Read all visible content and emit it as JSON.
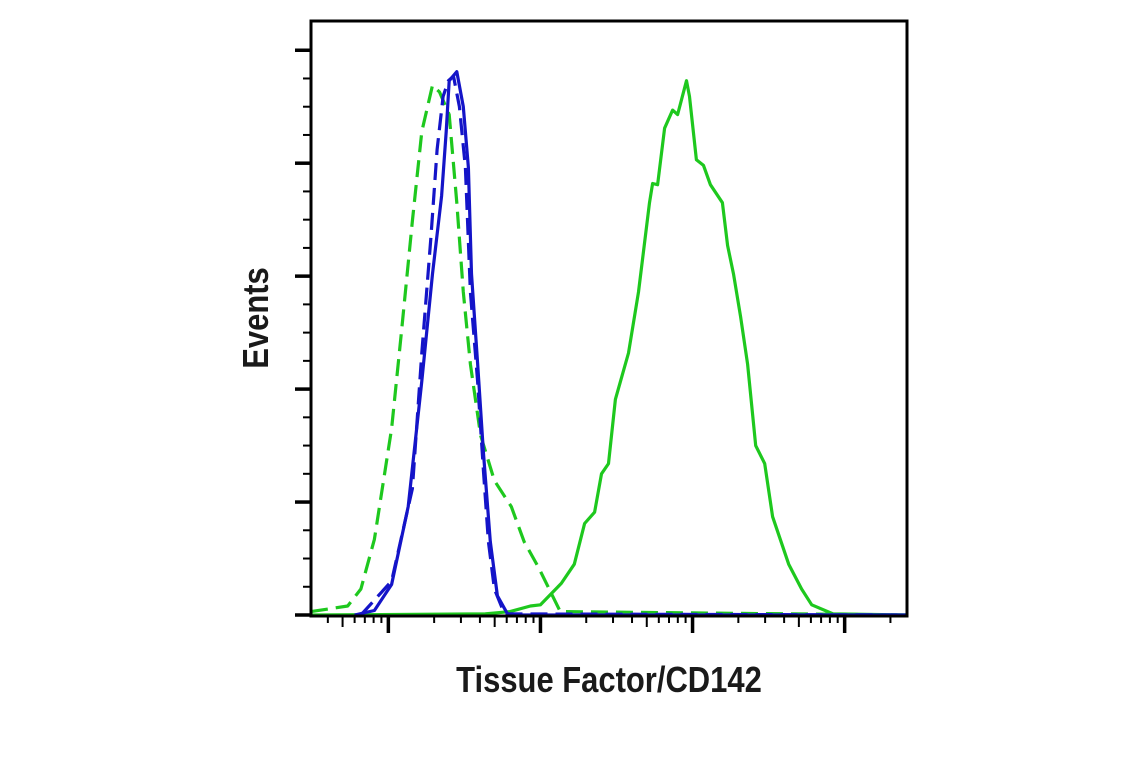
{
  "chart_data": {
    "type": "line",
    "title": "",
    "xlabel": "Tissue Factor/CD142",
    "ylabel": "Events",
    "xscale": "log",
    "xlim": [
      31,
      257000
    ],
    "ylim": [
      0,
      5.25
    ],
    "x_major_ticks": [
      100,
      1000,
      10000,
      100000
    ],
    "y_major_ticks": [
      0,
      1,
      2,
      3,
      4,
      5
    ],
    "tick_labels_shown": false,
    "grid": false,
    "legend": "none",
    "series": [
      {
        "color": "#1ec81e",
        "style": "solid",
        "points": [
          [
            31,
            0
          ],
          [
            434,
            0.01
          ],
          [
            632,
            0.03
          ],
          [
            859,
            0.08
          ],
          [
            1000,
            0.09
          ],
          [
            1370,
            0.28
          ],
          [
            1670,
            0.45
          ],
          [
            1950,
            0.81
          ],
          [
            2270,
            0.91
          ],
          [
            2520,
            1.25
          ],
          [
            2800,
            1.34
          ],
          [
            3110,
            1.91
          ],
          [
            3790,
            2.32
          ],
          [
            4410,
            2.86
          ],
          [
            5210,
            3.65
          ],
          [
            5460,
            3.82
          ],
          [
            5890,
            3.81
          ],
          [
            6550,
            4.31
          ],
          [
            7390,
            4.47
          ],
          [
            7980,
            4.43
          ],
          [
            9120,
            4.73
          ],
          [
            9550,
            4.59
          ],
          [
            10600,
            4.03
          ],
          [
            11800,
            3.98
          ],
          [
            13100,
            3.81
          ],
          [
            15700,
            3.65
          ],
          [
            17000,
            3.27
          ],
          [
            18600,
            3.02
          ],
          [
            20700,
            2.64
          ],
          [
            23000,
            2.22
          ],
          [
            26000,
            1.5
          ],
          [
            29800,
            1.34
          ],
          [
            33600,
            0.87
          ],
          [
            42900,
            0.45
          ],
          [
            52100,
            0.23
          ],
          [
            60700,
            0.09
          ],
          [
            83800,
            0.01
          ],
          [
            257000,
            0
          ]
        ]
      },
      {
        "color": "#1ec81e",
        "style": "dashed",
        "points": [
          [
            31,
            0.03
          ],
          [
            54,
            0.08
          ],
          [
            66,
            0.23
          ],
          [
            81,
            0.67
          ],
          [
            105,
            1.65
          ],
          [
            122,
            2.51
          ],
          [
            144,
            3.49
          ],
          [
            166,
            4.28
          ],
          [
            195,
            4.69
          ],
          [
            217,
            4.63
          ],
          [
            251,
            4.43
          ],
          [
            282,
            3.65
          ],
          [
            311,
            2.86
          ],
          [
            346,
            2.22
          ],
          [
            404,
            1.59
          ],
          [
            498,
            1.19
          ],
          [
            643,
            0.96
          ],
          [
            781,
            0.65
          ],
          [
            972,
            0.42
          ],
          [
            1200,
            0.17
          ],
          [
            1350,
            0.03
          ],
          [
            257000,
            0
          ]
        ]
      },
      {
        "color": "#1414c8",
        "style": "dashed",
        "points": [
          [
            66,
            0
          ],
          [
            105,
            0.3
          ],
          [
            144,
            1.12
          ],
          [
            166,
            2.32
          ],
          [
            190,
            3.33
          ],
          [
            209,
            4.12
          ],
          [
            229,
            4.59
          ],
          [
            248,
            4.73
          ],
          [
            268,
            4.77
          ],
          [
            293,
            4.5
          ],
          [
            321,
            3.96
          ],
          [
            346,
            2.86
          ],
          [
            386,
            2.07
          ],
          [
            422,
            1.27
          ],
          [
            455,
            0.65
          ],
          [
            498,
            0.23
          ],
          [
            580,
            0.01
          ],
          [
            257000,
            0
          ]
        ]
      },
      {
        "color": "#1414c8",
        "style": "solid",
        "points": [
          [
            60,
            0
          ],
          [
            81,
            0.04
          ],
          [
            105,
            0.27
          ],
          [
            135,
            0.96
          ],
          [
            166,
            2.07
          ],
          [
            195,
            3.02
          ],
          [
            224,
            3.71
          ],
          [
            240,
            4.28
          ],
          [
            251,
            4.73
          ],
          [
            282,
            4.81
          ],
          [
            311,
            4.5
          ],
          [
            336,
            3.96
          ],
          [
            352,
            3.02
          ],
          [
            386,
            2.23
          ],
          [
            422,
            1.43
          ],
          [
            468,
            0.65
          ],
          [
            521,
            0.17
          ],
          [
            607,
            0.01
          ],
          [
            750,
            0
          ],
          [
            257000,
            0
          ]
        ]
      }
    ]
  }
}
